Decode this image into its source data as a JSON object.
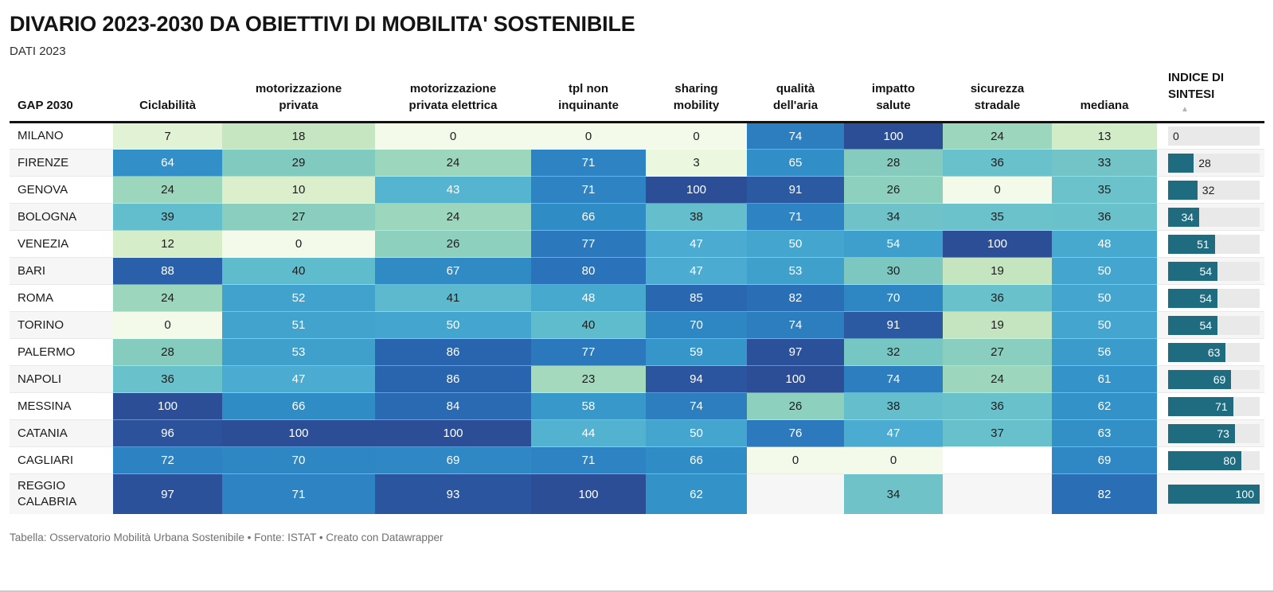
{
  "title": "DIVARIO 2023-2030 DA OBIETTIVI DI MOBILITA' SOSTENIBILE",
  "subtitle": "DATI 2023",
  "footer": "Tabella: Osservatorio Mobilità Urbana Sostenibile • Fonte: ISTAT • Creato con Datawrapper",
  "sort_indicator": "▲",
  "header_lines": [
    [
      "GAP 2030"
    ],
    [
      "Ciclabilità"
    ],
    [
      "motorizzazione",
      "privata"
    ],
    [
      "motorizzazione",
      "privata elettrica"
    ],
    [
      "tpl non",
      "inquinante"
    ],
    [
      "sharing",
      "mobility"
    ],
    [
      "qualità",
      "dell'aria"
    ],
    [
      "impatto",
      "salute"
    ],
    [
      "sicurezza",
      "stradale"
    ],
    [
      "mediana"
    ],
    [
      "INDICE DI",
      "SINTESI"
    ]
  ],
  "chart_data": {
    "type": "table",
    "title": "DIVARIO 2023-2030 DA OBIETTIVI DI MOBILITA' SOSTENIBILE",
    "subtitle": "DATI 2023",
    "value_range": [
      0,
      100
    ],
    "columns": [
      "GAP 2030",
      "Ciclabilità",
      "motorizzazione privata",
      "motorizzazione privata elettrica",
      "tpl non inquinante",
      "sharing mobility",
      "qualità dell'aria",
      "impatto salute",
      "sicurezza stradale",
      "mediana",
      "INDICE DI SINTESI"
    ],
    "rows": [
      {
        "label": "MILANO",
        "values": [
          7,
          18,
          0,
          0,
          0,
          74,
          100,
          24,
          13
        ],
        "indice": 0
      },
      {
        "label": "FIRENZE",
        "values": [
          64,
          29,
          24,
          71,
          3,
          65,
          28,
          36,
          33
        ],
        "indice": 28
      },
      {
        "label": "GENOVA",
        "values": [
          24,
          10,
          43,
          71,
          100,
          91,
          26,
          0,
          35
        ],
        "indice": 32
      },
      {
        "label": "BOLOGNA",
        "values": [
          39,
          27,
          24,
          66,
          38,
          71,
          34,
          35,
          36
        ],
        "indice": 34
      },
      {
        "label": "VENEZIA",
        "values": [
          12,
          0,
          26,
          77,
          47,
          50,
          54,
          100,
          48
        ],
        "indice": 51
      },
      {
        "label": "BARI",
        "values": [
          88,
          40,
          67,
          80,
          47,
          53,
          30,
          19,
          50
        ],
        "indice": 54
      },
      {
        "label": "ROMA",
        "values": [
          24,
          52,
          41,
          48,
          85,
          82,
          70,
          36,
          50
        ],
        "indice": 54
      },
      {
        "label": "TORINO",
        "values": [
          0,
          51,
          50,
          40,
          70,
          74,
          91,
          19,
          50
        ],
        "indice": 54
      },
      {
        "label": "PALERMO",
        "values": [
          28,
          53,
          86,
          77,
          59,
          97,
          32,
          27,
          56
        ],
        "indice": 63
      },
      {
        "label": "NAPOLI",
        "values": [
          36,
          47,
          86,
          23,
          94,
          100,
          74,
          24,
          61
        ],
        "indice": 69
      },
      {
        "label": "MESSINA",
        "values": [
          100,
          66,
          84,
          58,
          74,
          26,
          38,
          36,
          62
        ],
        "indice": 71
      },
      {
        "label": "CATANIA",
        "values": [
          96,
          100,
          100,
          44,
          50,
          76,
          47,
          37,
          63
        ],
        "indice": 73
      },
      {
        "label": "CAGLIARI",
        "values": [
          72,
          70,
          69,
          71,
          66,
          0,
          0,
          null,
          69
        ],
        "indice": 80
      },
      {
        "label": "REGGIO CALABRIA",
        "values": [
          97,
          71,
          93,
          100,
          62,
          null,
          34,
          null,
          82
        ],
        "indice": 100
      }
    ]
  },
  "colors": {
    "heatmap_stops": [
      [
        0,
        "#f3fae9"
      ],
      [
        10,
        "#dbefcc"
      ],
      [
        20,
        "#c1e4bf"
      ],
      [
        25,
        "#92d2bd"
      ],
      [
        30,
        "#7cc8c0"
      ],
      [
        35,
        "#6cc2ca"
      ],
      [
        40,
        "#5fbccd"
      ],
      [
        45,
        "#4fafd1"
      ],
      [
        50,
        "#44a5ce"
      ],
      [
        55,
        "#3c9dcb"
      ],
      [
        60,
        "#3594c9"
      ],
      [
        65,
        "#318ec6"
      ],
      [
        70,
        "#2e86c3"
      ],
      [
        75,
        "#2c7cbe"
      ],
      [
        80,
        "#2a72b9"
      ],
      [
        85,
        "#2968b1"
      ],
      [
        90,
        "#2b5ba4"
      ],
      [
        95,
        "#2b539c"
      ],
      [
        100,
        "#2b4e96"
      ]
    ],
    "white_text_min_value": 43,
    "bar": "#1f6b80",
    "bar_track": "#e9e9e9",
    "row_stripe": "#f6f6f6",
    "header_rule": "#121212",
    "dark_text": "#1d1d1d"
  }
}
